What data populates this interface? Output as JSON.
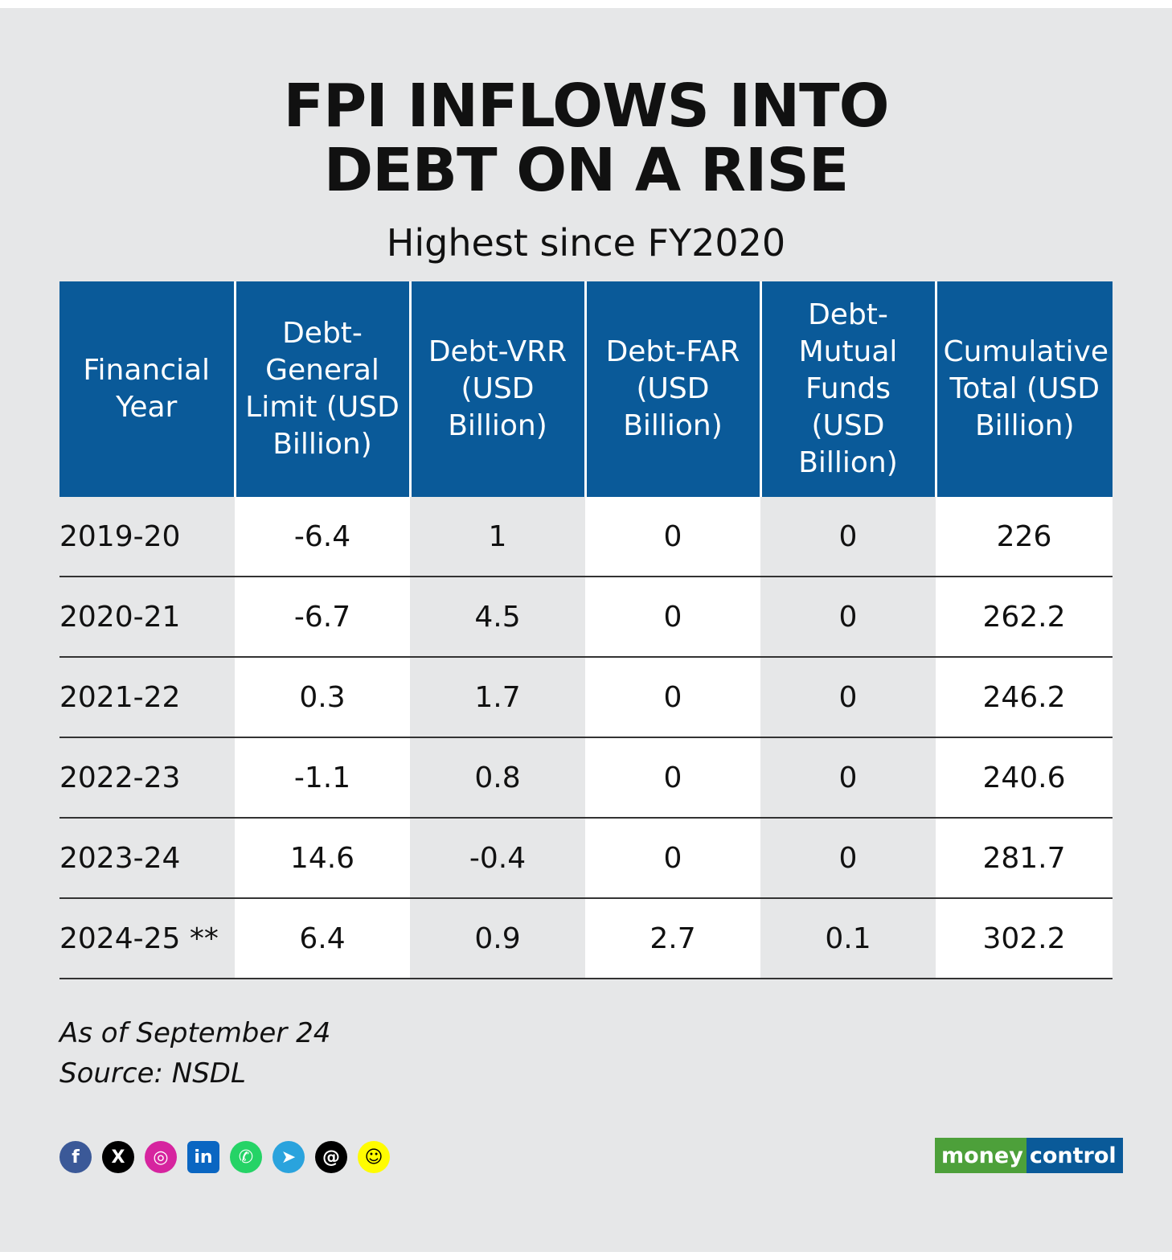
{
  "header": {
    "title_line1": "FPI INFLOWS INTO",
    "title_line2": "DEBT ON A RISE",
    "subtitle": "Highest since FY2020"
  },
  "table": {
    "columns": [
      "Financial Year",
      "Debt- General Limit (USD Billion)",
      "Debt-VRR (USD Billion)",
      "Debt-FAR (USD Billion)",
      "Debt- Mutual Funds (USD Billion)",
      "Cumulative Total (USD Billion)"
    ],
    "rows": [
      [
        "2019-20",
        "-6.4",
        "1",
        "0",
        "0",
        "226"
      ],
      [
        "2020-21",
        "-6.7",
        "4.5",
        "0",
        "0",
        "262.2"
      ],
      [
        "2021-22",
        "0.3",
        "1.7",
        "0",
        "0",
        "246.2"
      ],
      [
        "2022-23",
        "-1.1",
        "0.8",
        "0",
        "0",
        "240.6"
      ],
      [
        "2023-24",
        "14.6",
        "-0.4",
        "0",
        "0",
        "281.7"
      ],
      [
        "2024-25 **",
        "6.4",
        "0.9",
        "2.7",
        "0.1",
        "302.2"
      ]
    ]
  },
  "notes": {
    "as_of": "As of September 24",
    "source": "Source: NSDL"
  },
  "footer": {
    "social_icons": [
      "facebook-icon",
      "x-icon",
      "instagram-icon",
      "linkedin-icon",
      "whatsapp-icon",
      "telegram-icon",
      "threads-icon",
      "snapchat-icon"
    ],
    "social_glyphs": [
      "f",
      "X",
      "◎",
      "in",
      "✆",
      "➤",
      "@",
      "☺"
    ],
    "logo_part1": "money",
    "logo_part2": "control"
  },
  "colors": {
    "header_blue": "#0a5a99",
    "background": "#e6e7e8",
    "logo_green": "#4da03a"
  }
}
